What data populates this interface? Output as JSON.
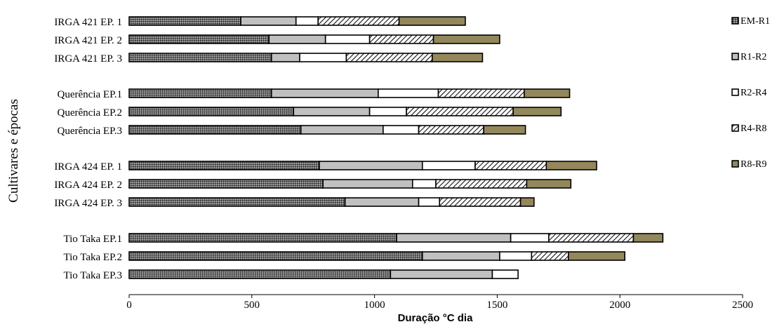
{
  "chart_data": {
    "type": "bar",
    "orientation": "horizontal",
    "stacked": true,
    "xlabel": "Duração °C dia",
    "ylabel": "Cultivares e épocas",
    "xlim": [
      0,
      2500
    ],
    "x_ticks": [
      "0",
      "500",
      "1000",
      "1500",
      "2000",
      "2500"
    ],
    "grid": false,
    "legend_position": "right",
    "categories": [
      "IRGA 421 EP. 1",
      "IRGA 421 EP. 2",
      "IRGA 421 EP. 3",
      "Querência EP.1",
      "Querência EP.2",
      "Querência EP.3",
      "IRGA 424 EP. 1",
      "IRGA 424 EP. 2",
      "IRGA 424 EP. 3",
      "Tio Taka EP.1",
      "Tio Taka EP.2",
      "Tio Taka EP.3"
    ],
    "groups_of": 3,
    "series": [
      {
        "name": "EM-R1",
        "pattern": "dots",
        "color": "#3a3a3a",
        "values": [
          455,
          570,
          580,
          580,
          670,
          700,
          775,
          790,
          880,
          1090,
          1195,
          1065
        ]
      },
      {
        "name": "R1-R2",
        "pattern": "solid",
        "color": "#c0c0c0",
        "values": [
          225,
          230,
          115,
          435,
          310,
          335,
          420,
          365,
          300,
          465,
          315,
          415
        ]
      },
      {
        "name": "R2-R4",
        "pattern": "solid",
        "color": "#ffffff",
        "values": [
          90,
          180,
          190,
          245,
          150,
          145,
          215,
          95,
          85,
          155,
          130,
          105
        ]
      },
      {
        "name": "R4-R8",
        "pattern": "hatch",
        "color": "#ffffff",
        "values": [
          330,
          260,
          350,
          350,
          435,
          265,
          290,
          370,
          330,
          345,
          150,
          0
        ]
      },
      {
        "name": "R8-R9",
        "pattern": "solid",
        "color": "#93875c",
        "values": [
          270,
          270,
          205,
          185,
          195,
          170,
          205,
          180,
          55,
          120,
          230,
          0
        ]
      }
    ]
  }
}
